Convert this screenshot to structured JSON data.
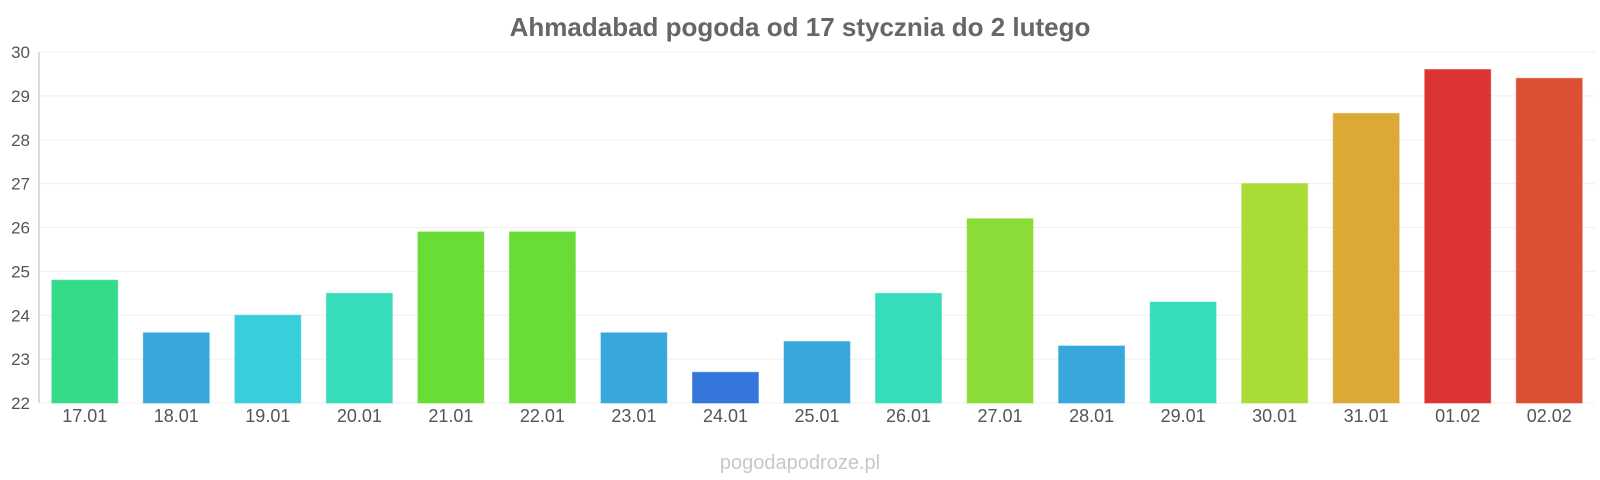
{
  "chart_data": {
    "type": "bar",
    "title": "Ahmadabad pogoda od 17 stycznia do 2 lutego",
    "xlabel": "",
    "ylabel": "",
    "categories": [
      "17.01",
      "18.01",
      "19.01",
      "20.01",
      "21.01",
      "22.01",
      "23.01",
      "24.01",
      "25.01",
      "26.01",
      "27.01",
      "28.01",
      "29.01",
      "30.01",
      "31.01",
      "01.02",
      "02.02"
    ],
    "values": [
      24.8,
      23.6,
      24.0,
      24.5,
      25.9,
      25.9,
      23.6,
      22.7,
      23.4,
      24.5,
      26.2,
      23.3,
      24.3,
      27.0,
      28.6,
      29.6,
      29.4
    ],
    "colors": [
      "#34dc89",
      "#37a7dc",
      "#37cfdc",
      "#37dcbb",
      "#69dc37",
      "#69dc37",
      "#37a7dc",
      "#3476dc",
      "#37a7dc",
      "#37dcbb",
      "#8cdc37",
      "#37a7dc",
      "#37dcbb",
      "#a9dc37",
      "#dca937",
      "#dc3434",
      "#dc5034"
    ],
    "yticks": [
      22,
      23,
      24,
      25,
      26,
      27,
      28,
      29,
      30
    ],
    "ylim": [
      22,
      30
    ],
    "grid": true,
    "legend": "none"
  },
  "footer": {
    "credit": "pogodapodroze.pl"
  }
}
